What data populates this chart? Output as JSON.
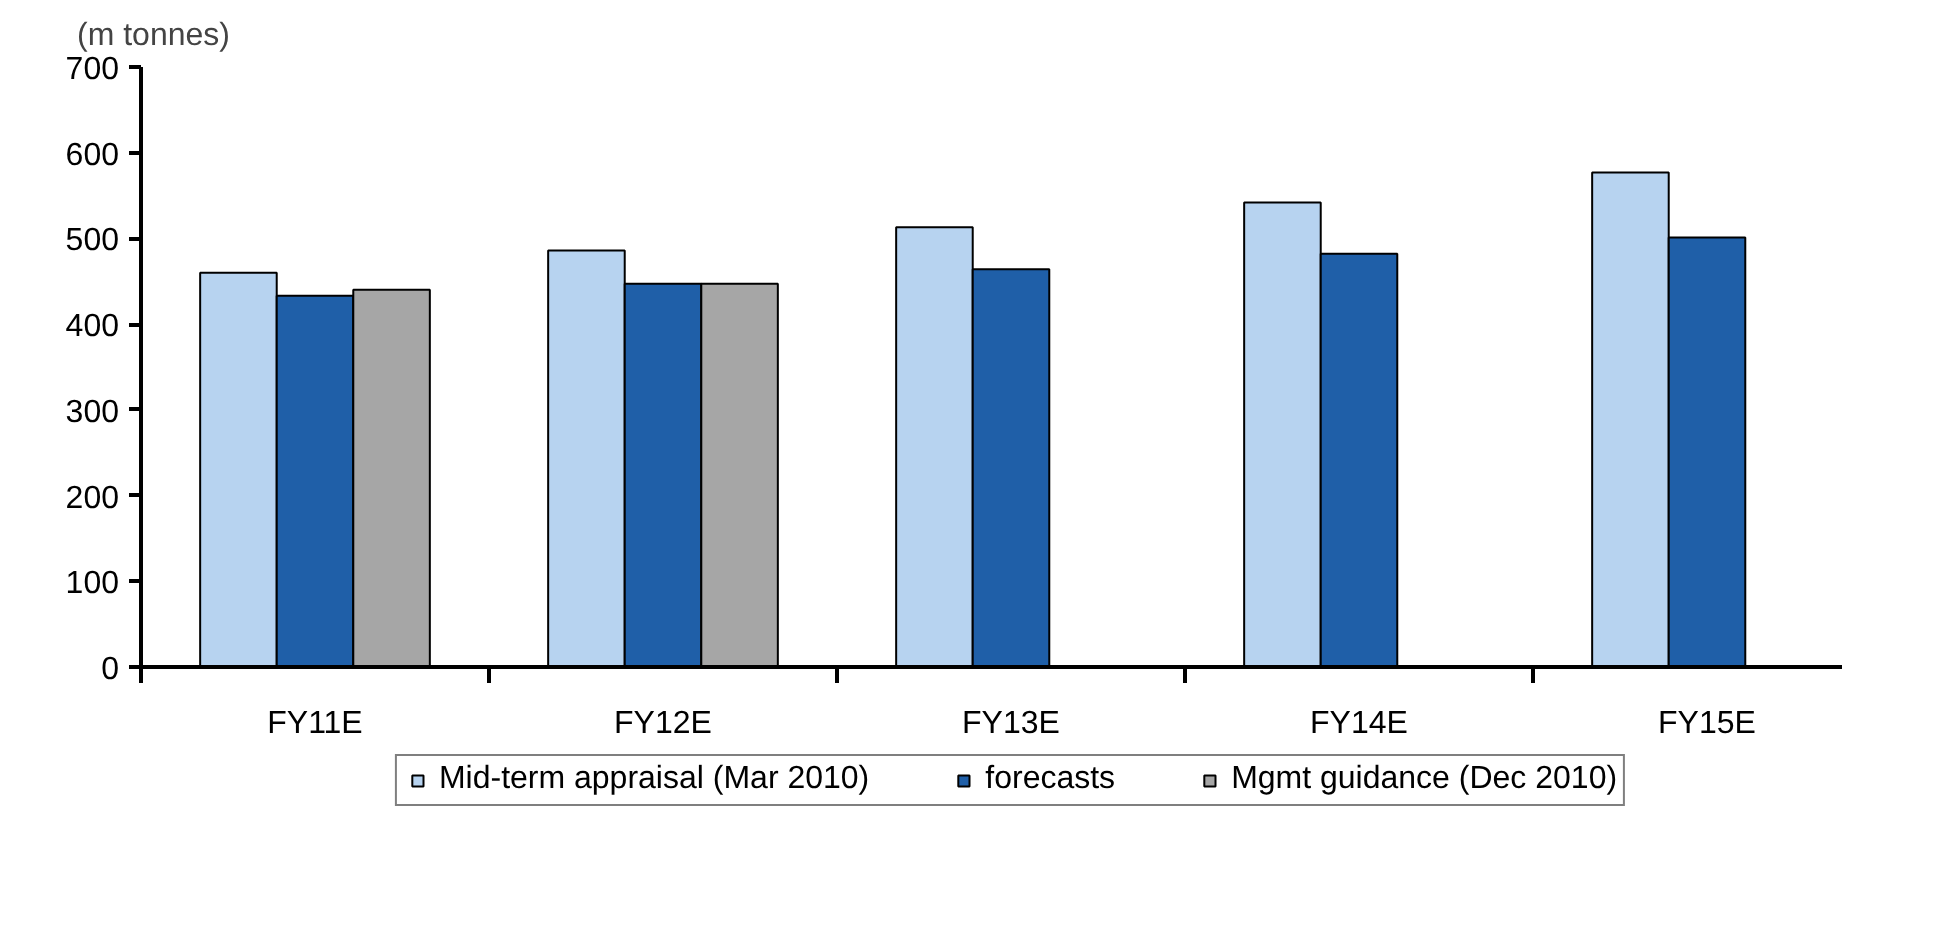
{
  "chart_data": {
    "type": "bar",
    "ylabel": "(m tonnes)",
    "categories": [
      "FY11E",
      "FY12E",
      "FY13E",
      "FY14E",
      "FY15E"
    ],
    "series": [
      {
        "name": "Mid-term appraisal (Mar 2010)",
        "color": "#b7d3f0",
        "values": [
          460,
          486,
          513,
          542,
          577
        ]
      },
      {
        "name": "forecasts",
        "color": "#1f5fa8",
        "values": [
          433,
          447,
          464,
          482,
          501
        ]
      },
      {
        "name": "Mgmt guidance (Dec 2010)",
        "color": "#a6a6a6",
        "values": [
          440,
          447,
          null,
          null,
          null
        ]
      }
    ],
    "ylim": [
      0,
      700
    ],
    "yticks": [
      0,
      100,
      200,
      300,
      400,
      500,
      600,
      700
    ],
    "grid": false,
    "legend": "bottom"
  }
}
